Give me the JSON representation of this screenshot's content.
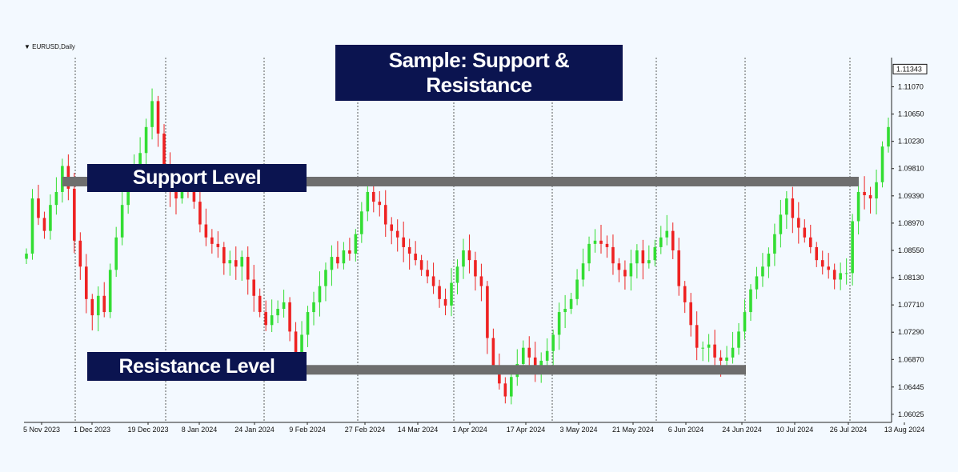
{
  "symbol_label": "EURUSD,Daily",
  "overlays": {
    "title": "Sample: Support & Resistance",
    "support": "Support Level",
    "resistance": "Resistance Level"
  },
  "colors": {
    "bull": "#33dd33",
    "bear": "#ee2222",
    "overlay_box": "#0b1450",
    "level_bar": "#6e6e6e",
    "background": "#f3f9ff"
  },
  "chart_data": {
    "type": "candlestick",
    "x_tick_labels": [
      "5 Nov 2023",
      "1 Dec 2023",
      "19 Dec 2023",
      "8 Jan 2024",
      "24 Jan 2024",
      "9 Feb 2024",
      "27 Feb 2024",
      "14 Mar 2024",
      "1 Apr 2024",
      "17 Apr 2024",
      "3 May 2024",
      "21 May 2024",
      "6 Jun 2024",
      "24 Jun 2024",
      "10 Jul 2024",
      "26 Jul 2024",
      "13 Aug 2024"
    ],
    "y_tick_labels": [
      "1.11070",
      "1.10650",
      "1.10230",
      "1.09810",
      "1.09390",
      "1.08970",
      "1.08550",
      "1.08130",
      "1.07710",
      "1.07290",
      "1.06870",
      "1.06445",
      "1.06025"
    ],
    "current_price": "1.11343",
    "ylim": [
      1.059,
      1.1152
    ],
    "levels": [
      {
        "name": "Support Level",
        "price": 1.0961,
        "from": "1 Dec 2023",
        "to": "26 Jul 2024"
      },
      {
        "name": "Resistance Level",
        "price": 1.0671,
        "from": "1 Dec 2023",
        "to": "24 Jun 2024"
      }
    ],
    "close_path": [
      1.085,
      1.0935,
      1.0905,
      1.0885,
      1.0925,
      1.0945,
      1.0985,
      1.095,
      1.087,
      1.083,
      1.078,
      1.0755,
      1.0785,
      1.076,
      1.0825,
      1.0875,
      1.0925,
      1.0965,
      1.0985,
      1.1005,
      1.1045,
      1.1085,
      1.1035,
      1.0985,
      1.0945,
      1.0935,
      1.0955,
      1.0945,
      1.093,
      1.0895,
      1.0875,
      1.0865,
      1.086,
      1.0835,
      1.084,
      1.083,
      1.0845,
      1.081,
      1.0785,
      1.076,
      1.074,
      1.0755,
      1.0765,
      1.0775,
      1.073,
      1.0695,
      1.0725,
      1.076,
      1.0775,
      1.08,
      1.0825,
      1.0845,
      1.0835,
      1.0855,
      1.085,
      1.088,
      1.0915,
      1.0945,
      1.093,
      1.0925,
      1.0895,
      1.0885,
      1.0875,
      1.086,
      1.085,
      1.084,
      1.0825,
      1.0815,
      1.08,
      1.078,
      1.077,
      1.0805,
      1.083,
      1.0855,
      1.084,
      1.0815,
      1.08,
      1.072,
      1.0675,
      1.065,
      1.063,
      1.066,
      1.068,
      1.0705,
      1.069,
      1.067,
      1.0685,
      1.07,
      1.0725,
      1.076,
      1.0765,
      1.078,
      1.081,
      1.0835,
      1.0865,
      1.087,
      1.0865,
      1.086,
      1.0835,
      1.0825,
      1.0815,
      1.0835,
      1.0855,
      1.0835,
      1.084,
      1.086,
      1.0875,
      1.0885,
      1.0855,
      1.08,
      1.0775,
      1.074,
      1.0705,
      1.0705,
      1.071,
      1.069,
      1.0685,
      1.069,
      1.0705,
      1.073,
      1.076,
      1.0795,
      1.0815,
      1.083,
      1.085,
      1.088,
      1.091,
      1.0935,
      1.0905,
      1.089,
      1.0875,
      1.086,
      1.084,
      1.083,
      1.0825,
      1.081,
      1.082,
      1.082,
      1.09,
      1.0945,
      1.094,
      1.0935,
      1.096,
      1.1015,
      1.1045
    ]
  }
}
